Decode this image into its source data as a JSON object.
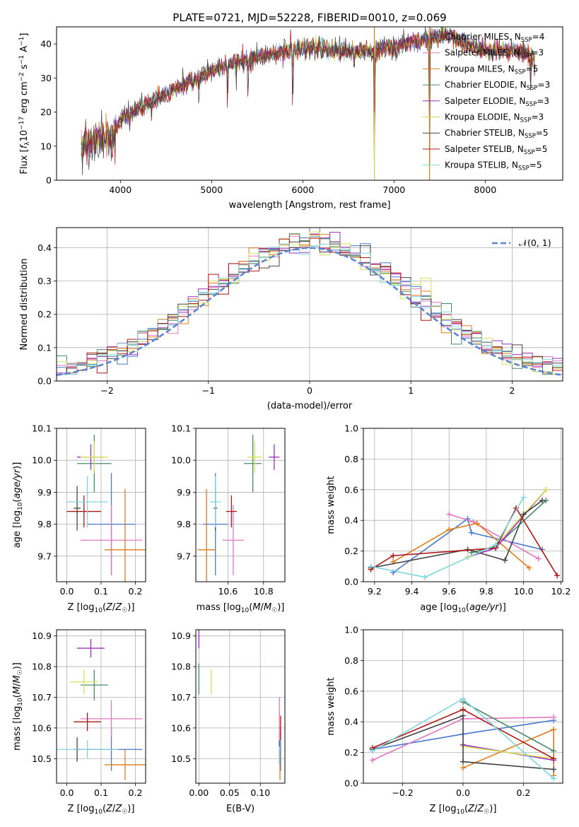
{
  "figure": {
    "title": "PLATE=0721, MJD=52228, FIBERID=0010, z=0.069"
  },
  "models": [
    {
      "name": "Chabrier MILES",
      "nssp": "4",
      "color": "#4878cf"
    },
    {
      "name": "Salpeter MILES",
      "nssp": "3",
      "color": "#e377c2"
    },
    {
      "name": "Kroupa MILES",
      "nssp": "5",
      "color": "#e07b1a"
    },
    {
      "name": "Chabrier ELODIE",
      "nssp": "3",
      "color": "#4a8a6a"
    },
    {
      "name": "Salpeter ELODIE",
      "nssp": "3",
      "color": "#9a2fbd"
    },
    {
      "name": "Kroupa ELODIE",
      "nssp": "3",
      "color": "#d6e35a"
    },
    {
      "name": "Chabrier STELIB",
      "nssp": "5",
      "color": "#444444"
    },
    {
      "name": "Salpeter STELIB",
      "nssp": "5",
      "color": "#b01818"
    },
    {
      "name": "Kroupa STELIB",
      "nssp": "5",
      "color": "#7fd6e0"
    }
  ],
  "chart_data": [
    {
      "type": "line",
      "id": "spectrum",
      "title": "PLATE=0721, MJD=52228, FIBERID=0010, z=0.069",
      "xlabel": "wavelength [Angstrom, rest frame]",
      "ylabel": "Flux [f_λ 10^-17 erg cm^-2 s^-1 A^-1]",
      "xlim": [
        3300,
        8850
      ],
      "ylim": [
        0,
        45
      ],
      "xticks": [
        4000,
        5000,
        6000,
        7000,
        8000
      ],
      "yticks": [
        0,
        10,
        20,
        30,
        40
      ],
      "continuum": [
        [
          3570,
          10
        ],
        [
          3700,
          12
        ],
        [
          3900,
          12
        ],
        [
          4000,
          18
        ],
        [
          4200,
          21
        ],
        [
          4400,
          24
        ],
        [
          4700,
          28
        ],
        [
          5000,
          32
        ],
        [
          5200,
          34
        ],
        [
          5500,
          36
        ],
        [
          5800,
          38
        ],
        [
          6100,
          39
        ],
        [
          6400,
          38
        ],
        [
          6700,
          38
        ],
        [
          7000,
          39
        ],
        [
          7300,
          41
        ],
        [
          7600,
          43
        ],
        [
          7700,
          41
        ],
        [
          8000,
          38
        ],
        [
          8300,
          38
        ],
        [
          8500,
          37
        ]
      ],
      "grid": false,
      "legend": "upper right"
    },
    {
      "type": "line",
      "id": "residuals",
      "xlabel": "(data-model)/error",
      "ylabel": "Normed distribution",
      "xlim": [
        -2.5,
        2.5
      ],
      "ylim": [
        0,
        0.46
      ],
      "xticks": [
        -2,
        -1,
        0,
        1,
        2
      ],
      "yticks": [
        0.0,
        0.1,
        0.2,
        0.3,
        0.4
      ],
      "reference": {
        "label": "𝒩(0, 1)",
        "mean": 0,
        "sigma": 1,
        "color": "#5b86d6"
      },
      "bin_width": 0.1,
      "grid": true,
      "legend": "upper right"
    },
    {
      "type": "scatter",
      "id": "age_vs_Z",
      "xlabel": "Z [log10(Z/Z☉)]",
      "ylabel": "age [log10(age/yr)]",
      "xlim": [
        -0.03,
        0.23
      ],
      "ylim": [
        9.62,
        10.1
      ],
      "xticks": [
        0.0,
        0.1,
        0.2
      ],
      "yticks": [
        9.7,
        9.8,
        9.9,
        10.0,
        10.1
      ],
      "points": [
        {
          "m": 0,
          "x": 0.13,
          "y": 9.8,
          "xe": 0.07,
          "ye": 0.16
        },
        {
          "m": 1,
          "x": 0.13,
          "y": 9.75,
          "xe": 0.09,
          "ye": 0.11
        },
        {
          "m": 2,
          "x": 0.17,
          "y": 9.72,
          "xe": 0.06,
          "ye": 0.19
        },
        {
          "m": 3,
          "x": 0.08,
          "y": 9.99,
          "xe": 0.05,
          "ye": 0.09
        },
        {
          "m": 4,
          "x": 0.07,
          "y": 10.01,
          "xe": 0.04,
          "ye": 0.04
        },
        {
          "m": 5,
          "x": 0.08,
          "y": 10.01,
          "xe": 0.04,
          "ye": 0.05
        },
        {
          "m": 6,
          "x": 0.03,
          "y": 9.85,
          "xe": 0.01,
          "ye": 0.07
        },
        {
          "m": 7,
          "x": 0.05,
          "y": 9.84,
          "xe": 0.05,
          "ye": 0.05
        },
        {
          "m": 8,
          "x": 0.06,
          "y": 9.87,
          "xe": 0.06,
          "ye": 0.08
        }
      ]
    },
    {
      "type": "scatter",
      "id": "age_vs_mass",
      "xlabel": "mass [log10(M/M☉)]",
      "ylabel": "",
      "xlim": [
        10.42,
        10.92
      ],
      "ylim": [
        9.62,
        10.1
      ],
      "xticks": [
        10.6,
        10.8
      ],
      "yticks": [
        9.7,
        9.8,
        9.9,
        10.0,
        10.1
      ],
      "points": [
        {
          "m": 0,
          "x": 10.53,
          "y": 9.8,
          "xe": 0.07,
          "ye": 0.16
        },
        {
          "m": 1,
          "x": 10.63,
          "y": 9.75,
          "xe": 0.06,
          "ye": 0.11
        },
        {
          "m": 2,
          "x": 10.48,
          "y": 9.72,
          "xe": 0.05,
          "ye": 0.19
        },
        {
          "m": 3,
          "x": 10.74,
          "y": 9.99,
          "xe": 0.05,
          "ye": 0.09
        },
        {
          "m": 4,
          "x": 10.86,
          "y": 10.01,
          "xe": 0.03,
          "ye": 0.04
        },
        {
          "m": 5,
          "x": 10.75,
          "y": 10.01,
          "xe": 0.04,
          "ye": 0.05
        },
        {
          "m": 6,
          "x": 10.53,
          "y": 9.85,
          "xe": 0.01,
          "ye": 0.07
        },
        {
          "m": 7,
          "x": 10.62,
          "y": 9.84,
          "xe": 0.03,
          "ye": 0.05
        },
        {
          "m": 8,
          "x": 10.53,
          "y": 9.87,
          "xe": 0.03,
          "ye": 0.08
        }
      ]
    },
    {
      "type": "line",
      "id": "massweight_vs_age",
      "xlabel": "age [log10(age/yr)]",
      "ylabel": "mass weight",
      "xlim": [
        9.14,
        10.21
      ],
      "ylim": [
        0,
        1
      ],
      "xticks": [
        9.2,
        9.4,
        9.6,
        9.8,
        10.0,
        10.2
      ],
      "yticks": [
        0.0,
        0.2,
        0.4,
        0.6,
        0.8,
        1.0
      ],
      "series": [
        {
          "m": 0,
          "points": [
            [
              9.3,
              0.06
            ],
            [
              9.7,
              0.41
            ],
            [
              9.72,
              0.32
            ],
            [
              10.1,
              0.21
            ]
          ]
        },
        {
          "m": 1,
          "points": [
            [
              9.6,
              0.44
            ],
            [
              9.73,
              0.39
            ],
            [
              10.08,
              0.15
            ]
          ]
        },
        {
          "m": 2,
          "points": [
            [
              9.3,
              0.13
            ],
            [
              9.6,
              0.34
            ],
            [
              9.75,
              0.38
            ],
            [
              10.03,
              0.09
            ]
          ]
        },
        {
          "m": 3,
          "points": [
            [
              9.72,
              0.19
            ],
            [
              9.85,
              0.23
            ],
            [
              10.12,
              0.53
            ]
          ]
        },
        {
          "m": 4,
          "points": [
            [
              9.7,
              0.16
            ],
            [
              9.85,
              0.22
            ],
            [
              10.12,
              0.6
            ]
          ]
        },
        {
          "m": 5,
          "points": [
            [
              9.7,
              0.16
            ],
            [
              9.85,
              0.24
            ],
            [
              10.12,
              0.6
            ]
          ]
        },
        {
          "m": 6,
          "points": [
            [
              9.18,
              0.09
            ],
            [
              9.7,
              0.21
            ],
            [
              9.9,
              0.14
            ],
            [
              10.0,
              0.44
            ],
            [
              10.1,
              0.53
            ]
          ]
        },
        {
          "m": 7,
          "points": [
            [
              9.18,
              0.08
            ],
            [
              9.3,
              0.17
            ],
            [
              9.85,
              0.22
            ],
            [
              9.96,
              0.48
            ],
            [
              10.18,
              0.04
            ]
          ]
        },
        {
          "m": 8,
          "points": [
            [
              9.18,
              0.1
            ],
            [
              9.47,
              0.03
            ],
            [
              9.85,
              0.24
            ],
            [
              10.0,
              0.55
            ]
          ]
        }
      ]
    },
    {
      "type": "scatter",
      "id": "mass_vs_Z",
      "xlabel": "Z [log10(Z/Z☉)]",
      "ylabel": "mass [log10(M/M☉)]",
      "xlim": [
        -0.03,
        0.23
      ],
      "ylim": [
        10.42,
        10.92
      ],
      "xticks": [
        0.0,
        0.1,
        0.2
      ],
      "yticks": [
        10.5,
        10.6,
        10.7,
        10.8,
        10.9
      ],
      "points": [
        {
          "m": 0,
          "x": 0.13,
          "y": 10.53,
          "xe": 0.09,
          "ye": 0.07
        },
        {
          "m": 1,
          "x": 0.13,
          "y": 10.63,
          "xe": 0.09,
          "ye": 0.06
        },
        {
          "m": 2,
          "x": 0.17,
          "y": 10.48,
          "xe": 0.06,
          "ye": 0.05
        },
        {
          "m": 3,
          "x": 0.08,
          "y": 10.74,
          "xe": 0.04,
          "ye": 0.05
        },
        {
          "m": 4,
          "x": 0.07,
          "y": 10.86,
          "xe": 0.04,
          "ye": 0.03
        },
        {
          "m": 5,
          "x": 0.05,
          "y": 10.75,
          "xe": 0.04,
          "ye": 0.04
        },
        {
          "m": 6,
          "x": 0.03,
          "y": 10.53,
          "xe": 0.01,
          "ye": 0.04
        },
        {
          "m": 7,
          "x": 0.06,
          "y": 10.62,
          "xe": 0.04,
          "ye": 0.03
        },
        {
          "m": 8,
          "x": 0.06,
          "y": 10.53,
          "xe": 0.09,
          "ye": 0.03
        }
      ]
    },
    {
      "type": "scatter",
      "id": "mass_vs_EBV",
      "xlabel": "E(B-V)",
      "ylabel": "",
      "xlim": [
        -0.005,
        0.14
      ],
      "ylim": [
        10.42,
        10.92
      ],
      "xticks": [
        0.0,
        0.05,
        0.1
      ],
      "xticklabels": [
        "0.00",
        "0.05",
        "0.10"
      ],
      "yticks": [
        10.5,
        10.6,
        10.7,
        10.8,
        10.9
      ],
      "points": [
        {
          "m": 0,
          "x": 0.133,
          "y": 10.53,
          "xe": 0,
          "ye": 0.07
        },
        {
          "m": 1,
          "x": 0.131,
          "y": 10.63,
          "xe": 0,
          "ye": 0.07
        },
        {
          "m": 2,
          "x": 0.132,
          "y": 10.48,
          "xe": 0,
          "ye": 0.05
        },
        {
          "m": 3,
          "x": 0.0,
          "y": 10.76,
          "xe": 0,
          "ye": 0.05
        },
        {
          "m": 4,
          "x": 0.0,
          "y": 10.89,
          "xe": 0,
          "ye": 0.03
        },
        {
          "m": 5,
          "x": 0.02,
          "y": 10.75,
          "xe": 0,
          "ye": 0.04
        },
        {
          "m": 6,
          "x": 0.131,
          "y": 10.52,
          "xe": 0,
          "ye": 0.04
        },
        {
          "m": 7,
          "x": 0.133,
          "y": 10.6,
          "xe": 0,
          "ye": 0.04
        },
        {
          "m": 8,
          "x": 0.131,
          "y": 10.51,
          "xe": 0,
          "ye": 0.03
        }
      ]
    },
    {
      "type": "line",
      "id": "massweight_vs_Z",
      "xlabel": "Z [log10(Z/Z☉)]",
      "ylabel": "mass weight",
      "xlim": [
        -0.33,
        0.33
      ],
      "ylim": [
        0,
        1
      ],
      "xticks": [
        -0.2,
        0.0,
        0.2
      ],
      "yticks": [
        0.0,
        0.2,
        0.4,
        0.6,
        0.8,
        1.0
      ],
      "series": [
        {
          "m": 0,
          "points": [
            [
              -0.3,
              0.22
            ],
            [
              0.0,
              0.32
            ],
            [
              0.3,
              0.41
            ]
          ]
        },
        {
          "m": 1,
          "points": [
            [
              -0.3,
              0.15
            ],
            [
              0.0,
              0.42
            ],
            [
              0.3,
              0.43
            ]
          ]
        },
        {
          "m": 2,
          "points": [
            [
              0.0,
              0.1
            ],
            [
              0.3,
              0.35
            ],
            [
              0.3,
              0.05
            ]
          ]
        },
        {
          "m": 3,
          "points": [
            [
              0.0,
              0.53
            ],
            [
              0.3,
              0.21
            ]
          ]
        },
        {
          "m": 4,
          "points": [
            [
              0.0,
              0.25
            ],
            [
              0.3,
              0.15
            ]
          ]
        },
        {
          "m": 5,
          "points": [
            [
              0.0,
              0.24
            ],
            [
              0.3,
              0.16
            ]
          ]
        },
        {
          "m": 6,
          "points": [
            [
              -0.3,
              0.22
            ],
            [
              0.0,
              0.44
            ],
            [
              0.0,
              0.14
            ],
            [
              0.3,
              0.09
            ]
          ]
        },
        {
          "m": 7,
          "points": [
            [
              -0.3,
              0.23
            ],
            [
              0.0,
              0.48
            ],
            [
              0.3,
              0.16
            ]
          ]
        },
        {
          "m": 8,
          "points": [
            [
              -0.3,
              0.21
            ],
            [
              0.0,
              0.55
            ],
            [
              0.3,
              0.03
            ]
          ]
        }
      ]
    }
  ]
}
